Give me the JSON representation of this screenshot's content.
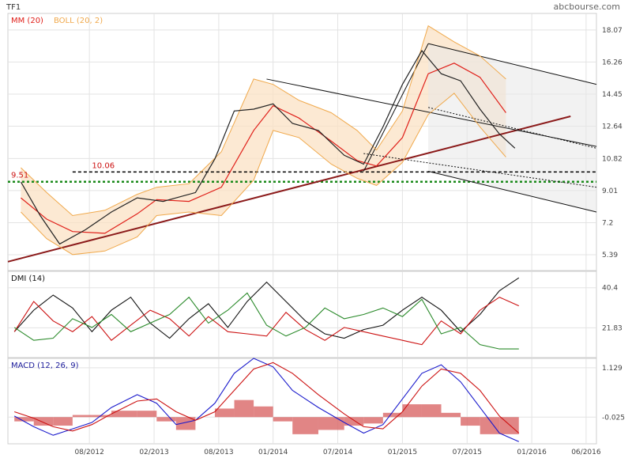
{
  "header": {
    "ticker": "TF1",
    "source": "abcbourse.com"
  },
  "colors": {
    "price": "#222222",
    "mm": "#e0201a",
    "boll_line": "#f0a94c",
    "boll_fill": "#fbe2c4",
    "trend": "#8b1a1a",
    "channel": "#111111",
    "dmi_black": "#111111",
    "dmi_red": "#cc1111",
    "dmi_green": "#2a8a2a",
    "macd_blue": "#1a1acc",
    "macd_red": "#cc1111",
    "hist": "#d96666",
    "support": "#1a8a1a",
    "grid": "#e3e3e3"
  },
  "chart_data": [
    {
      "type": "line",
      "legend": [
        "MM (20)",
        "BOLL (20, 2)"
      ],
      "y_ticks": [
        18.07,
        16.26,
        14.45,
        12.64,
        10.82,
        9.01,
        7.2,
        5.39
      ],
      "ylim": [
        4.5,
        19.0
      ],
      "grid": true,
      "annotations": [
        {
          "label": "9.51",
          "value": 9.51
        },
        {
          "label": "10.06",
          "value": 10.06
        }
      ],
      "series": [
        {
          "name": "MM (20)",
          "x": [
            2012.05,
            2012.25,
            2012.45,
            2012.7,
            2012.95,
            2013.1,
            2013.35,
            2013.6,
            2013.85,
            2014.0,
            2014.2,
            2014.45,
            2014.65,
            2014.8,
            2015.0,
            2015.2,
            2015.4,
            2015.6,
            2015.8
          ],
          "values": [
            8.6,
            7.4,
            6.7,
            6.6,
            7.7,
            8.5,
            8.4,
            9.2,
            12.4,
            13.8,
            13.1,
            11.8,
            10.7,
            10.4,
            12.0,
            15.6,
            16.2,
            15.4,
            13.4
          ]
        },
        {
          "name": "BOLL (20, 2) upper",
          "x": [
            2012.05,
            2012.25,
            2012.45,
            2012.7,
            2012.95,
            2013.1,
            2013.35,
            2013.6,
            2013.85,
            2014.0,
            2014.2,
            2014.45,
            2014.65,
            2014.8,
            2015.0,
            2015.2,
            2015.4,
            2015.6,
            2015.8
          ],
          "values": [
            10.3,
            8.9,
            7.6,
            7.9,
            8.8,
            9.2,
            9.4,
            11.2,
            15.3,
            15.0,
            14.1,
            13.4,
            12.4,
            11.3,
            13.5,
            18.3,
            17.4,
            16.6,
            15.3
          ]
        },
        {
          "name": "BOLL (20, 2) lower",
          "x": [
            2012.05,
            2012.25,
            2012.45,
            2012.7,
            2012.95,
            2013.1,
            2013.35,
            2013.6,
            2013.85,
            2014.0,
            2014.2,
            2014.45,
            2014.65,
            2014.8,
            2015.0,
            2015.2,
            2015.4,
            2015.6,
            2015.8
          ],
          "values": [
            7.8,
            6.3,
            5.4,
            5.6,
            6.4,
            7.6,
            7.8,
            7.6,
            9.6,
            12.4,
            12.0,
            10.5,
            9.7,
            9.3,
            10.6,
            13.3,
            14.5,
            12.6,
            10.9
          ]
        },
        {
          "name": "Close",
          "x": [
            2012.05,
            2012.2,
            2012.35,
            2012.55,
            2012.75,
            2012.95,
            2013.15,
            2013.4,
            2013.55,
            2013.7,
            2013.85,
            2014.0,
            2014.15,
            2014.35,
            2014.55,
            2014.7,
            2014.85,
            2015.0,
            2015.15,
            2015.3,
            2015.45,
            2015.6,
            2015.75,
            2015.87
          ],
          "values": [
            9.5,
            7.6,
            6.0,
            6.8,
            7.8,
            8.6,
            8.4,
            8.9,
            10.8,
            13.5,
            13.6,
            13.9,
            12.8,
            12.4,
            11.0,
            10.5,
            12.6,
            15.0,
            16.9,
            15.6,
            15.2,
            13.6,
            12.2,
            11.4
          ]
        }
      ]
    },
    {
      "type": "line",
      "legend": [
        "DMI (14)"
      ],
      "y_ticks": [
        40.4,
        21.83
      ],
      "ylim": [
        8,
        48
      ],
      "grid": true,
      "series": [
        {
          "x": [
            2012.0,
            2012.15,
            2012.3,
            2012.45,
            2012.6,
            2012.75,
            2012.9,
            2013.05,
            2013.2,
            2013.35,
            2013.5,
            2013.65,
            2013.8,
            2013.95,
            2014.1,
            2014.25,
            2014.4,
            2014.55,
            2014.7,
            2014.85,
            2015.0,
            2015.15,
            2015.3,
            2015.45,
            2015.6,
            2015.75,
            2015.9
          ],
          "values": [
            20,
            30,
            37,
            31,
            20,
            30,
            36,
            24,
            17,
            26,
            33,
            22,
            34,
            43,
            34,
            25,
            19,
            17,
            21,
            23,
            30,
            36,
            30,
            20,
            28,
            39,
            45
          ]
        },
        {
          "x": [
            2012.0,
            2012.15,
            2012.3,
            2012.45,
            2012.6,
            2012.75,
            2012.9,
            2013.05,
            2013.2,
            2013.35,
            2013.5,
            2013.65,
            2013.8,
            2013.95,
            2014.1,
            2014.25,
            2014.4,
            2014.55,
            2014.7,
            2014.85,
            2015.0,
            2015.15,
            2015.3,
            2015.45,
            2015.6,
            2015.75,
            2015.9
          ],
          "values": [
            20,
            34,
            25,
            20,
            27,
            16,
            23,
            30,
            26,
            18,
            27,
            20,
            19,
            18,
            29,
            21,
            16,
            22,
            20,
            18,
            16,
            14,
            25,
            19,
            30,
            36,
            32
          ]
        },
        {
          "x": [
            2012.0,
            2012.15,
            2012.3,
            2012.45,
            2012.6,
            2012.75,
            2012.9,
            2013.05,
            2013.2,
            2013.35,
            2013.5,
            2013.65,
            2013.8,
            2013.95,
            2014.1,
            2014.25,
            2014.4,
            2014.55,
            2014.7,
            2014.85,
            2015.0,
            2015.15,
            2015.3,
            2015.45,
            2015.6,
            2015.75,
            2015.9
          ],
          "values": [
            22,
            16,
            17,
            26,
            22,
            28,
            20,
            24,
            28,
            36,
            24,
            30,
            38,
            23,
            18,
            22,
            31,
            26,
            28,
            31,
            27,
            35,
            19,
            22,
            14,
            12,
            12
          ]
        }
      ]
    },
    {
      "type": "line",
      "legend": [
        "MACD (12, 26, 9)"
      ],
      "y_ticks": [
        1.129,
        -0.025
      ],
      "ylim": [
        -0.65,
        1.35
      ],
      "grid": true,
      "x_ticks": [
        "08/2012",
        "02/2013",
        "08/2013",
        "01/2014",
        "07/2014",
        "01/2015",
        "07/2015",
        "01/2016",
        "06/2016"
      ],
      "series": [
        {
          "x": [
            2012.0,
            2012.15,
            2012.3,
            2012.45,
            2012.6,
            2012.75,
            2012.95,
            2013.1,
            2013.25,
            2013.4,
            2013.55,
            2013.7,
            2013.85,
            2014.0,
            2014.15,
            2014.35,
            2014.55,
            2014.7,
            2014.85,
            2015.0,
            2015.15,
            2015.3,
            2015.45,
            2015.6,
            2015.75,
            2015.9
          ],
          "values": [
            0.0,
            -0.25,
            -0.45,
            -0.3,
            -0.15,
            0.2,
            0.5,
            0.3,
            -0.2,
            -0.1,
            0.3,
            1.0,
            1.35,
            1.15,
            0.6,
            0.2,
            -0.15,
            -0.4,
            -0.2,
            0.4,
            1.0,
            1.2,
            0.8,
            0.2,
            -0.4,
            -0.6
          ]
        },
        {
          "x": [
            2012.0,
            2012.15,
            2012.3,
            2012.45,
            2012.6,
            2012.75,
            2012.95,
            2013.1,
            2013.25,
            2013.4,
            2013.55,
            2013.7,
            2013.85,
            2014.0,
            2014.15,
            2014.35,
            2014.55,
            2014.7,
            2014.85,
            2015.0,
            2015.15,
            2015.3,
            2015.45,
            2015.6,
            2015.75,
            2015.9
          ],
          "values": [
            0.1,
            -0.05,
            -0.25,
            -0.35,
            -0.2,
            0.05,
            0.35,
            0.4,
            0.1,
            -0.1,
            0.1,
            0.6,
            1.1,
            1.25,
            1.0,
            0.5,
            0.05,
            -0.25,
            -0.3,
            0.1,
            0.7,
            1.1,
            1.0,
            0.6,
            0.0,
            -0.4
          ]
        }
      ]
    }
  ]
}
